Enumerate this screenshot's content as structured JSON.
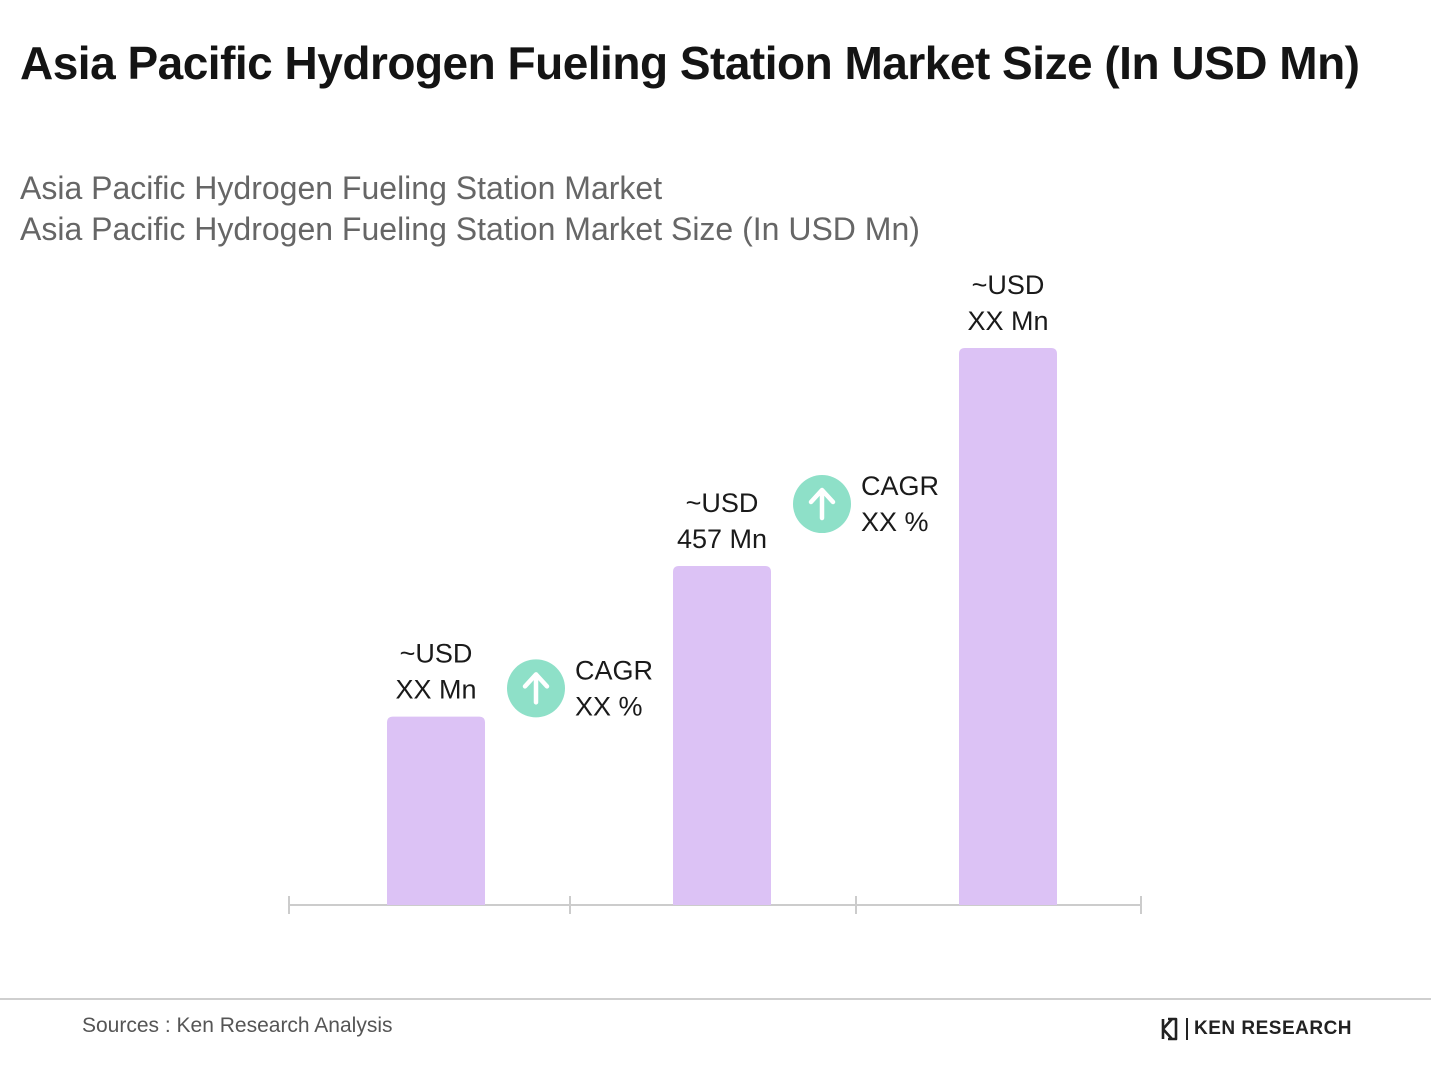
{
  "title": "Asia Pacific Hydrogen Fueling Station Market Size (In USD Mn)",
  "subtitles": [
    "Asia Pacific Hydrogen Fueling Station Market",
    "Asia Pacific Hydrogen Fueling Station Market Size (In USD Mn)"
  ],
  "chart_data": {
    "type": "bar",
    "title": "",
    "xlabel": "",
    "ylabel": "",
    "categories": [
      "",
      "",
      ""
    ],
    "values": [
      254,
      457,
      751
    ],
    "value_labels": [
      [
        "~USD",
        "XX Mn"
      ],
      [
        "~USD",
        "457 Mn"
      ],
      [
        "~USD",
        "XX Mn"
      ]
    ],
    "ylim": [
      0,
      751
    ],
    "grid": false,
    "legend": "none",
    "bar_color": "#dcc2f5",
    "axis_color": "#cccccc",
    "cagr_annotations": [
      {
        "between": [
          0,
          1
        ],
        "label": "CAGR",
        "value": "XX %",
        "icon": "arrow-up-icon",
        "color": "#8ee0c8"
      },
      {
        "between": [
          1,
          2
        ],
        "label": "CAGR",
        "value": "XX %",
        "icon": "arrow-up-icon",
        "color": "#8ee0c8"
      }
    ]
  },
  "footer": {
    "source": "Sources : Ken Research Analysis",
    "brand": "KEN RESEARCH",
    "brand_icon": "ken-research-logo-icon"
  }
}
